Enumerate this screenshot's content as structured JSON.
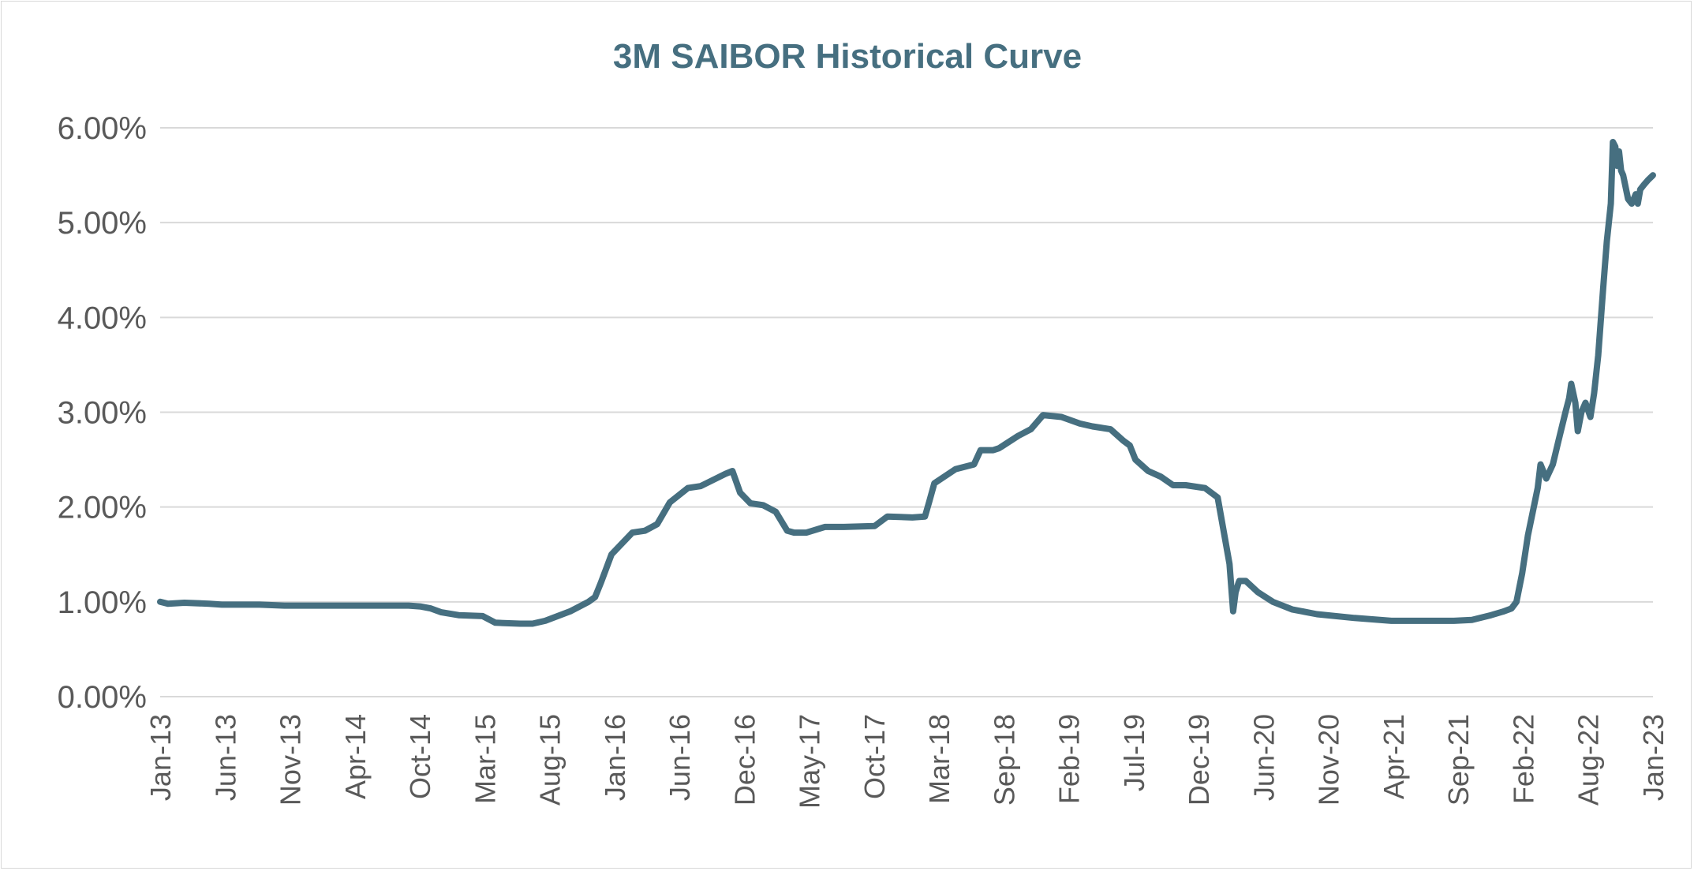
{
  "chart_data": {
    "type": "line",
    "title": "3M SAIBOR Historical Curve",
    "xlabel": "",
    "ylabel": "",
    "x_tick_labels": [
      "Jan-13",
      "Jun-13",
      "Nov-13",
      "Apr-14",
      "Oct-14",
      "Mar-15",
      "Aug-15",
      "Jan-16",
      "Jun-16",
      "Dec-16",
      "May-17",
      "Oct-17",
      "Mar-18",
      "Sep-18",
      "Feb-19",
      "Jul-19",
      "Dec-19",
      "Jun-20",
      "Nov-20",
      "Apr-21",
      "Sep-21",
      "Feb-22",
      "Aug-22",
      "Jan-23"
    ],
    "y_tick_labels": [
      "0.00%",
      "1.00%",
      "2.00%",
      "3.00%",
      "4.00%",
      "5.00%",
      "6.00%"
    ],
    "xlim": [
      "2013-01-01",
      "2023-01-01"
    ],
    "ylim": [
      0,
      6
    ],
    "grid": "horizontal",
    "legend": "none",
    "colors": {
      "line": "#466f80",
      "title": "#466f80",
      "grid": "#d9d9d9",
      "tick_text": "#595959"
    },
    "series": [
      {
        "x": [
          "2013-01-01",
          "2013-01-20",
          "2013-03-01",
          "2013-05-01",
          "2013-06-01",
          "2013-09-01",
          "2013-11-01",
          "2014-01-01",
          "2014-04-01",
          "2014-07-01",
          "2014-09-01",
          "2014-10-01",
          "2014-10-25",
          "2014-11-20",
          "2015-01-01",
          "2015-03-01",
          "2015-04-01",
          "2015-06-01",
          "2015-07-01",
          "2015-08-01",
          "2015-10-01",
          "2015-11-15",
          "2015-12-01",
          "2015-12-15",
          "2016-01-10",
          "2016-03-01",
          "2016-04-01",
          "2016-05-01",
          "2016-06-01",
          "2016-07-15",
          "2016-08-15",
          "2016-10-15",
          "2016-11-01",
          "2016-11-20",
          "2016-12-15",
          "2017-01-15",
          "2017-02-15",
          "2017-03-15",
          "2017-04-01",
          "2017-05-01",
          "2017-06-15",
          "2017-08-01",
          "2017-10-15",
          "2017-11-15",
          "2018-01-15",
          "2018-02-15",
          "2018-02-25",
          "2018-03-10",
          "2018-05-01",
          "2018-06-15",
          "2018-07-01",
          "2018-08-01",
          "2018-08-15",
          "2018-10-01",
          "2018-11-01",
          "2018-12-01",
          "2019-01-15",
          "2019-03-01",
          "2019-04-01",
          "2019-05-15",
          "2019-06-15",
          "2019-07-01",
          "2019-07-15",
          "2019-08-15",
          "2019-09-15",
          "2019-10-15",
          "2019-11-15",
          "2020-01-01",
          "2020-02-01",
          "2020-03-01",
          "2020-03-10",
          "2020-03-16",
          "2020-03-23",
          "2020-03-25",
          "2020-04-10",
          "2020-05-10",
          "2020-06-15",
          "2020-08-01",
          "2020-10-01",
          "2021-01-01",
          "2021-04-01",
          "2021-07-01",
          "2021-09-01",
          "2021-10-15",
          "2021-12-01",
          "2022-01-01",
          "2022-01-20",
          "2022-02-01",
          "2022-02-15",
          "2022-03-01",
          "2022-03-25",
          "2022-04-01",
          "2022-04-15",
          "2022-05-01",
          "2022-05-15",
          "2022-06-01",
          "2022-06-10",
          "2022-06-15",
          "2022-06-25",
          "2022-07-01",
          "2022-07-10",
          "2022-07-20",
          "2022-08-01",
          "2022-08-10",
          "2022-08-20",
          "2022-09-01",
          "2022-09-10",
          "2022-09-20",
          "2022-09-25",
          "2022-10-01",
          "2022-10-05",
          "2022-10-10",
          "2022-10-15",
          "2022-10-20",
          "2022-11-01",
          "2022-11-10",
          "2022-11-20",
          "2022-11-25",
          "2022-12-01",
          "2022-12-10",
          "2022-12-20",
          "2023-01-01"
        ],
        "values": [
          1.0,
          0.98,
          0.99,
          0.98,
          0.97,
          0.97,
          0.96,
          0.96,
          0.96,
          0.96,
          0.96,
          0.95,
          0.93,
          0.89,
          0.86,
          0.85,
          0.78,
          0.77,
          0.77,
          0.8,
          0.9,
          1.0,
          1.05,
          1.2,
          1.5,
          1.73,
          1.75,
          1.82,
          2.05,
          2.2,
          2.22,
          2.35,
          2.38,
          2.15,
          2.04,
          2.02,
          1.95,
          1.75,
          1.73,
          1.73,
          1.79,
          1.79,
          1.8,
          1.9,
          1.89,
          1.9,
          2.05,
          2.25,
          2.4,
          2.45,
          2.6,
          2.6,
          2.62,
          2.75,
          2.82,
          2.97,
          2.95,
          2.88,
          2.85,
          2.82,
          2.7,
          2.65,
          2.5,
          2.38,
          2.32,
          2.23,
          2.23,
          2.2,
          2.1,
          1.4,
          0.9,
          1.1,
          1.2,
          1.22,
          1.22,
          1.1,
          1.0,
          0.92,
          0.87,
          0.83,
          0.8,
          0.8,
          0.8,
          0.81,
          0.86,
          0.9,
          0.93,
          1.0,
          1.3,
          1.7,
          2.2,
          2.45,
          2.3,
          2.45,
          2.7,
          3.0,
          3.15,
          3.3,
          3.1,
          2.8,
          3.0,
          3.1,
          2.95,
          3.2,
          3.6,
          4.3,
          4.8,
          5.2,
          5.85,
          5.8,
          5.6,
          5.75,
          5.55,
          5.5,
          5.25,
          5.2,
          5.3,
          5.2,
          5.35,
          5.4,
          5.45,
          5.5
        ]
      }
    ]
  }
}
